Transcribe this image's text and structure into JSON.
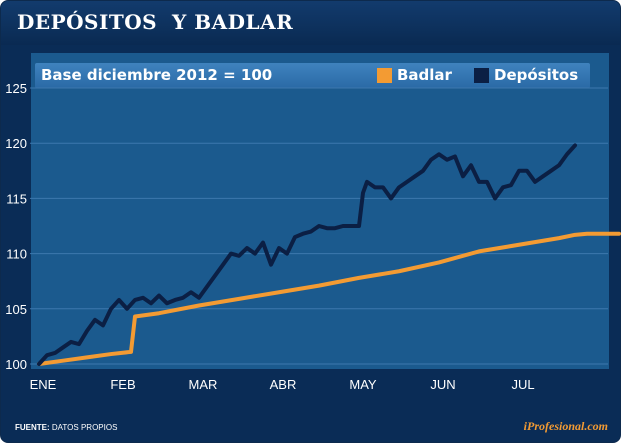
{
  "header": {
    "title": "DEPÓSITOS  Y BADLAR"
  },
  "footer": {
    "source_label": "FUENTE:",
    "source_text": "DATOS PROPIOS",
    "brand": "iProfesional.com"
  },
  "colors": {
    "badlar": "#f39b33",
    "depositos": "#0b1f44",
    "plot_bg": "#1b5a8e",
    "frame_bg": "#0a2c56",
    "grid": "#3d78ad"
  },
  "chart_data": {
    "type": "line",
    "title": "",
    "subtitle": "Base diciembre 2012 = 100",
    "xlabel": "",
    "ylabel": "",
    "ylim": [
      100,
      125
    ],
    "yticks": [
      100,
      105,
      110,
      115,
      120,
      125
    ],
    "xlim": [
      0,
      7.2
    ],
    "categories": [
      "ENE",
      "FEB",
      "MAR",
      "ABR",
      "MAY",
      "JUN",
      "JUL"
    ],
    "grid": true,
    "legend_position": "top",
    "series": [
      {
        "name": "Badlar",
        "color": "#f39b33",
        "x": [
          0.0,
          0.3,
          0.6,
          0.9,
          1.15,
          1.2,
          1.5,
          2.0,
          2.5,
          3.0,
          3.5,
          4.0,
          4.5,
          5.0,
          5.5,
          6.0,
          6.5,
          6.7,
          6.85,
          7.0,
          7.25
        ],
        "values": [
          100.0,
          100.3,
          100.6,
          100.9,
          101.1,
          104.3,
          104.6,
          105.3,
          105.9,
          106.5,
          107.1,
          107.8,
          108.4,
          109.2,
          110.2,
          110.8,
          111.4,
          111.7,
          111.8,
          111.8,
          111.8
        ]
      },
      {
        "name": "Depósitos",
        "color": "#0b1f44",
        "x": [
          0.0,
          0.1,
          0.2,
          0.3,
          0.4,
          0.5,
          0.6,
          0.7,
          0.8,
          0.9,
          1.0,
          1.1,
          1.2,
          1.3,
          1.4,
          1.5,
          1.6,
          1.7,
          1.8,
          1.9,
          2.0,
          2.1,
          2.2,
          2.3,
          2.4,
          2.5,
          2.6,
          2.7,
          2.8,
          2.9,
          3.0,
          3.1,
          3.2,
          3.3,
          3.4,
          3.5,
          3.6,
          3.7,
          3.8,
          3.9,
          4.0,
          4.05,
          4.1,
          4.2,
          4.3,
          4.4,
          4.5,
          4.6,
          4.7,
          4.8,
          4.9,
          5.0,
          5.1,
          5.2,
          5.3,
          5.4,
          5.5,
          5.6,
          5.7,
          5.8,
          5.9,
          6.0,
          6.1,
          6.2,
          6.3,
          6.4
        ],
        "values": [
          100.0,
          100.8,
          101.0,
          101.5,
          102.0,
          101.8,
          103.0,
          104.0,
          103.5,
          105.0,
          105.8,
          105.0,
          105.8,
          106.0,
          105.5,
          106.2,
          105.5,
          105.8,
          106.0,
          106.5,
          106.0,
          107.0,
          108.0,
          109.0,
          110.0,
          109.8,
          110.5,
          110.0,
          111.0,
          109.0,
          110.5,
          110.0,
          111.5,
          111.8,
          112.0,
          112.5,
          112.3,
          112.3,
          112.5,
          112.5,
          112.5,
          115.5,
          116.5,
          116.0,
          116.0,
          115.0,
          116.0,
          116.5,
          117.0,
          117.5,
          118.5,
          119.0,
          118.5,
          118.8,
          117.0,
          118.0,
          116.5,
          116.5,
          115.0,
          116.0,
          116.2,
          117.5,
          117.5,
          116.5,
          117.0,
          117.5
        ]
      }
    ],
    "series_tail": {
      "x": [
        6.5,
        6.6,
        6.7
      ],
      "values": [
        118.0,
        119.0,
        119.8
      ]
    }
  }
}
